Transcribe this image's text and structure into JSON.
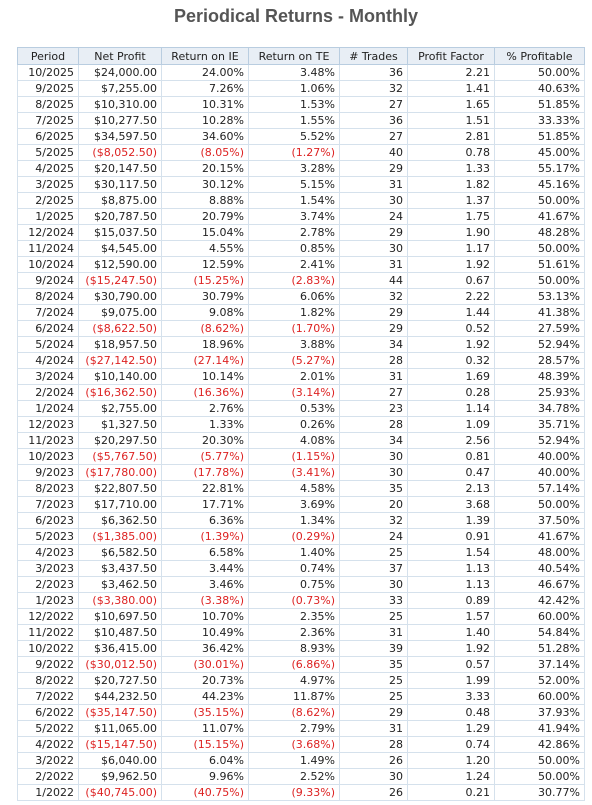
{
  "header": {
    "title": "Periodical Returns - Monthly"
  },
  "table": {
    "columns": [
      "Period",
      "Net Profit",
      "Return on IE",
      "Return on TE",
      "# Trades",
      "Profit Factor",
      "% Profitable"
    ],
    "rows": [
      [
        "10/2025",
        "$24,000.00",
        "24.00%",
        "3.48%",
        "36",
        "2.21",
        "50.00%"
      ],
      [
        "9/2025",
        "$7,255.00",
        "7.26%",
        "1.06%",
        "32",
        "1.41",
        "40.63%"
      ],
      [
        "8/2025",
        "$10,310.00",
        "10.31%",
        "1.53%",
        "27",
        "1.65",
        "51.85%"
      ],
      [
        "7/2025",
        "$10,277.50",
        "10.28%",
        "1.55%",
        "36",
        "1.51",
        "33.33%"
      ],
      [
        "6/2025",
        "$34,597.50",
        "34.60%",
        "5.52%",
        "27",
        "2.81",
        "51.85%"
      ],
      [
        "5/2025",
        "($8,052.50)",
        "(8.05%)",
        "(1.27%)",
        "40",
        "0.78",
        "45.00%"
      ],
      [
        "4/2025",
        "$20,147.50",
        "20.15%",
        "3.28%",
        "29",
        "1.33",
        "55.17%"
      ],
      [
        "3/2025",
        "$30,117.50",
        "30.12%",
        "5.15%",
        "31",
        "1.82",
        "45.16%"
      ],
      [
        "2/2025",
        "$8,875.00",
        "8.88%",
        "1.54%",
        "30",
        "1.37",
        "50.00%"
      ],
      [
        "1/2025",
        "$20,787.50",
        "20.79%",
        "3.74%",
        "24",
        "1.75",
        "41.67%"
      ],
      [
        "12/2024",
        "$15,037.50",
        "15.04%",
        "2.78%",
        "29",
        "1.90",
        "48.28%"
      ],
      [
        "11/2024",
        "$4,545.00",
        "4.55%",
        "0.85%",
        "30",
        "1.17",
        "50.00%"
      ],
      [
        "10/2024",
        "$12,590.00",
        "12.59%",
        "2.41%",
        "31",
        "1.92",
        "51.61%"
      ],
      [
        "9/2024",
        "($15,247.50)",
        "(15.25%)",
        "(2.83%)",
        "44",
        "0.67",
        "50.00%"
      ],
      [
        "8/2024",
        "$30,790.00",
        "30.79%",
        "6.06%",
        "32",
        "2.22",
        "53.13%"
      ],
      [
        "7/2024",
        "$9,075.00",
        "9.08%",
        "1.82%",
        "29",
        "1.44",
        "41.38%"
      ],
      [
        "6/2024",
        "($8,622.50)",
        "(8.62%)",
        "(1.70%)",
        "29",
        "0.52",
        "27.59%"
      ],
      [
        "5/2024",
        "$18,957.50",
        "18.96%",
        "3.88%",
        "34",
        "1.92",
        "52.94%"
      ],
      [
        "4/2024",
        "($27,142.50)",
        "(27.14%)",
        "(5.27%)",
        "28",
        "0.32",
        "28.57%"
      ],
      [
        "3/2024",
        "$10,140.00",
        "10.14%",
        "2.01%",
        "31",
        "1.69",
        "48.39%"
      ],
      [
        "2/2024",
        "($16,362.50)",
        "(16.36%)",
        "(3.14%)",
        "27",
        "0.28",
        "25.93%"
      ],
      [
        "1/2024",
        "$2,755.00",
        "2.76%",
        "0.53%",
        "23",
        "1.14",
        "34.78%"
      ],
      [
        "12/2023",
        "$1,327.50",
        "1.33%",
        "0.26%",
        "28",
        "1.09",
        "35.71%"
      ],
      [
        "11/2023",
        "$20,297.50",
        "20.30%",
        "4.08%",
        "34",
        "2.56",
        "52.94%"
      ],
      [
        "10/2023",
        "($5,767.50)",
        "(5.77%)",
        "(1.15%)",
        "30",
        "0.81",
        "40.00%"
      ],
      [
        "9/2023",
        "($17,780.00)",
        "(17.78%)",
        "(3.41%)",
        "30",
        "0.47",
        "40.00%"
      ],
      [
        "8/2023",
        "$22,807.50",
        "22.81%",
        "4.58%",
        "35",
        "2.13",
        "57.14%"
      ],
      [
        "7/2023",
        "$17,710.00",
        "17.71%",
        "3.69%",
        "20",
        "3.68",
        "50.00%"
      ],
      [
        "6/2023",
        "$6,362.50",
        "6.36%",
        "1.34%",
        "32",
        "1.39",
        "37.50%"
      ],
      [
        "5/2023",
        "($1,385.00)",
        "(1.39%)",
        "(0.29%)",
        "24",
        "0.91",
        "41.67%"
      ],
      [
        "4/2023",
        "$6,582.50",
        "6.58%",
        "1.40%",
        "25",
        "1.54",
        "48.00%"
      ],
      [
        "3/2023",
        "$3,437.50",
        "3.44%",
        "0.74%",
        "37",
        "1.13",
        "40.54%"
      ],
      [
        "2/2023",
        "$3,462.50",
        "3.46%",
        "0.75%",
        "30",
        "1.13",
        "46.67%"
      ],
      [
        "1/2023",
        "($3,380.00)",
        "(3.38%)",
        "(0.73%)",
        "33",
        "0.89",
        "42.42%"
      ],
      [
        "12/2022",
        "$10,697.50",
        "10.70%",
        "2.35%",
        "25",
        "1.57",
        "60.00%"
      ],
      [
        "11/2022",
        "$10,487.50",
        "10.49%",
        "2.36%",
        "31",
        "1.40",
        "54.84%"
      ],
      [
        "10/2022",
        "$36,415.00",
        "36.42%",
        "8.93%",
        "39",
        "1.92",
        "51.28%"
      ],
      [
        "9/2022",
        "($30,012.50)",
        "(30.01%)",
        "(6.86%)",
        "35",
        "0.57",
        "37.14%"
      ],
      [
        "8/2022",
        "$20,727.50",
        "20.73%",
        "4.97%",
        "25",
        "1.99",
        "52.00%"
      ],
      [
        "7/2022",
        "$44,232.50",
        "44.23%",
        "11.87%",
        "25",
        "3.33",
        "60.00%"
      ],
      [
        "6/2022",
        "($35,147.50)",
        "(35.15%)",
        "(8.62%)",
        "29",
        "0.48",
        "37.93%"
      ],
      [
        "5/2022",
        "$11,065.00",
        "11.07%",
        "2.79%",
        "31",
        "1.29",
        "41.94%"
      ],
      [
        "4/2022",
        "($15,147.50)",
        "(15.15%)",
        "(3.68%)",
        "28",
        "0.74",
        "42.86%"
      ],
      [
        "3/2022",
        "$6,040.00",
        "6.04%",
        "1.49%",
        "26",
        "1.20",
        "50.00%"
      ],
      [
        "2/2022",
        "$9,962.50",
        "9.96%",
        "2.52%",
        "30",
        "1.24",
        "50.00%"
      ],
      [
        "1/2022",
        "($40,745.00)",
        "(40.75%)",
        "(9.33%)",
        "26",
        "0.21",
        "30.77%"
      ]
    ]
  }
}
